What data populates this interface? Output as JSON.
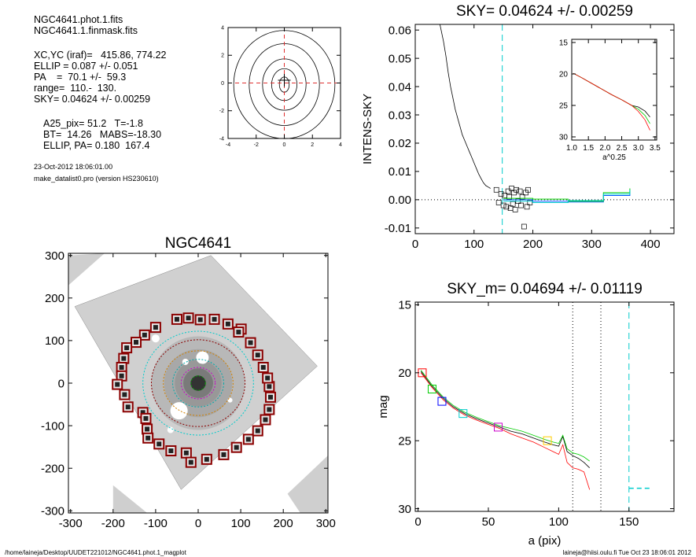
{
  "info": {
    "file1": "NGC4641.phot.1.fits",
    "file2": "NGC4641.1.finmask.fits",
    "xcyc": "XC,YC (iraf)=   415.86, 774.22",
    "ellip": "ELLIP = 0.087 +/- 0.051",
    "pa": "PA    =  70.1 +/-  59.3",
    "range": "range=  110.-  130.",
    "sky": "SKY= 0.04624 +/- 0.00259",
    "a25": "A25_pix= 51.2   T=-1.8",
    "bt": "BT=  14.26   MABS=-18.30",
    "ellip_pa": "ELLIP, PA= 0.180  167.4",
    "date": "23-Oct-2012 18:06:01.00",
    "program": "make_datalist0.pro (version HS230610)"
  },
  "footer": {
    "left": "/home/laineja/Desktop/UUDET221012/NGC4641.phot.1_magplot",
    "right": "laineja@hiisi.oulu.fi  Tue Oct 23 18:06:01 2012"
  },
  "chart_data": [
    {
      "type": "contour",
      "title": "",
      "xlim": [
        -4,
        4
      ],
      "ylim": [
        -4,
        4
      ],
      "xticks": [
        -4,
        -2,
        0,
        2,
        4
      ],
      "yticks": [
        -4,
        -2,
        0,
        2,
        4
      ],
      "levels": [
        {
          "rx": 0.35,
          "ry": 0.55
        },
        {
          "rx": 0.9,
          "ry": 1.15
        },
        {
          "rx": 1.55,
          "ry": 1.85
        },
        {
          "rx": 2.5,
          "ry": 2.95
        },
        {
          "rx": 3.6,
          "ry": 3.9
        }
      ],
      "crosshair": [
        0,
        0
      ]
    },
    {
      "type": "scatter",
      "title": "NGC4641",
      "xlim": [
        -305,
        305
      ],
      "ylim": [
        -305,
        305
      ],
      "xticks": [
        -300,
        -200,
        -100,
        0,
        100,
        200,
        300
      ],
      "yticks": [
        -300,
        -200,
        -100,
        0,
        100,
        200,
        300
      ],
      "ellipses": [
        {
          "a": 17,
          "b": 17,
          "color": "#00aa00"
        },
        {
          "a": 40,
          "b": 37,
          "color": "#cc00cc"
        },
        {
          "a": 60,
          "b": 56,
          "color": "#00aaaa"
        },
        {
          "a": 82,
          "b": 76,
          "color": "#d08000"
        },
        {
          "a": 110,
          "b": 102,
          "color": "#8b0000"
        },
        {
          "a": 130,
          "b": 122,
          "color": "#00cccc"
        }
      ],
      "masked_sources": [
        [
          -50,
          150
        ],
        [
          -23,
          153
        ],
        [
          5,
          149
        ],
        [
          38,
          150
        ],
        [
          70,
          139
        ],
        [
          101,
          127
        ],
        [
          -100,
          131
        ],
        [
          -126,
          113
        ],
        [
          -146,
          96
        ],
        [
          -168,
          83
        ],
        [
          -175,
          58
        ],
        [
          -180,
          37
        ],
        [
          -180,
          17
        ],
        [
          -190,
          -3
        ],
        [
          -173,
          -27
        ],
        [
          -165,
          -56
        ],
        [
          -130,
          -69
        ],
        [
          -123,
          -83
        ],
        [
          -120,
          -108
        ],
        [
          -118,
          -129
        ],
        [
          -92,
          -143
        ],
        [
          -64,
          -159
        ],
        [
          -28,
          -164
        ],
        [
          -17,
          -186
        ],
        [
          20,
          -179
        ],
        [
          60,
          -168
        ],
        [
          90,
          -151
        ],
        [
          118,
          -132
        ],
        [
          140,
          -112
        ],
        [
          158,
          -86
        ],
        [
          167,
          -62
        ],
        [
          170,
          -33
        ],
        [
          167,
          -8
        ],
        [
          163,
          12
        ],
        [
          153,
          37
        ],
        [
          140,
          66
        ],
        [
          123,
          95
        ],
        [
          95,
          120
        ]
      ]
    },
    {
      "type": "line",
      "title": "SKY= 0.04624 +/- 0.00259",
      "xlabel": "",
      "ylabel": "INTENS-SKY",
      "xlim": [
        0,
        440
      ],
      "ylim": [
        -0.012,
        0.062
      ],
      "xticks": [
        0,
        100,
        200,
        300,
        400
      ],
      "yticks": [
        -0.01,
        0.0,
        0.01,
        0.02,
        0.03,
        0.04,
        0.05,
        0.06
      ],
      "ytick_labels": [
        "-0.01",
        "0.00",
        "0.01",
        "0.02",
        "0.03",
        "0.04",
        "0.05",
        "0.06"
      ],
      "profile": {
        "x": [
          42,
          48,
          52,
          56,
          60,
          64,
          68,
          72,
          76,
          80,
          84,
          88,
          92,
          96,
          100,
          104,
          108,
          112,
          116,
          120,
          124,
          128
        ],
        "y": [
          0.062,
          0.056,
          0.051,
          0.045,
          0.04,
          0.036,
          0.032,
          0.029,
          0.026,
          0.023,
          0.021,
          0.019,
          0.017,
          0.015,
          0.013,
          0.011,
          0.009,
          0.0075,
          0.006,
          0.005,
          0.0045,
          0.004
        ]
      },
      "sky_boxes": {
        "x": [
          138,
          142,
          146,
          150,
          152,
          155,
          158,
          160,
          162,
          164,
          166,
          168,
          170,
          172,
          175,
          178,
          180,
          182,
          185,
          188,
          190,
          192,
          195
        ],
        "y": [
          0.0035,
          -0.001,
          0.002,
          -0.002,
          0.0015,
          -0.0025,
          0.003,
          0.001,
          -0.003,
          0.004,
          -0.0015,
          0.0025,
          -0.0035,
          0.0035,
          -0.0005,
          0.003,
          -0.002,
          0.001,
          -0.0095,
          0.0025,
          -0.0025,
          0.0035,
          -0.001
        ]
      },
      "step_lines": [
        {
          "color": "#0055ff",
          "x": [
            150,
            200,
            260,
            320,
            365
          ],
          "y": [
            0.0,
            -0.0005,
            -0.0008,
            0.0015,
            0.003
          ]
        },
        {
          "color": "#00cc00",
          "x": [
            150,
            200,
            260,
            320,
            365
          ],
          "y": [
            0.0005,
            0.0002,
            -0.0005,
            0.0025,
            0.004
          ]
        },
        {
          "color": "#00cccc",
          "x": [
            150,
            200,
            260,
            320,
            365
          ],
          "y": [
            -0.0005,
            -0.001,
            -0.0003,
            0.002,
            0.0035
          ]
        }
      ],
      "vline_x": 148,
      "inset": {
        "xlabel": "a^0.25",
        "xlim": [
          1.0,
          3.55
        ],
        "ylim": [
          30.5,
          14.5
        ],
        "xticks": [
          1.0,
          1.5,
          2.0,
          2.5,
          3.0,
          3.5
        ],
        "xtick_labels": [
          "1.0",
          "1.5",
          "2.0",
          "2.5",
          "3.0",
          "3.5"
        ],
        "yticks": [
          15,
          20,
          25,
          30
        ],
        "x": [
          1.05,
          1.3,
          1.6,
          1.9,
          2.2,
          2.5,
          2.8,
          3.0,
          3.2,
          3.35
        ],
        "y": [
          19.9,
          20.6,
          21.5,
          22.4,
          23.3,
          24.1,
          25.0,
          25.6,
          26.6,
          27.9
        ]
      }
    },
    {
      "type": "line",
      "title": "SKY_m=  0.04694 +/- 0.01119",
      "xlabel": "a (pix)",
      "ylabel": "mag",
      "xlim": [
        -2,
        182
      ],
      "ylim": [
        30.2,
        14.8
      ],
      "xticks": [
        0,
        50,
        100,
        150
      ],
      "yticks": [
        15,
        20,
        25,
        30
      ],
      "series": [
        {
          "color": "#000000",
          "x": [
            2,
            10,
            18,
            25,
            33,
            42,
            50,
            58,
            66,
            74,
            82,
            90,
            96,
            100,
            103,
            106,
            110,
            114,
            118,
            122
          ],
          "y": [
            19.9,
            21.0,
            21.9,
            22.5,
            23.0,
            23.4,
            23.7,
            24.0,
            24.3,
            24.5,
            24.8,
            25.1,
            25.3,
            25.4,
            24.7,
            25.8,
            26.1,
            26.3,
            26.6,
            27.0
          ]
        },
        {
          "color": "#00cc00",
          "x": [
            2,
            10,
            18,
            25,
            33,
            42,
            50,
            58,
            66,
            74,
            82,
            90,
            96,
            100,
            103,
            106,
            110,
            114,
            118,
            122
          ],
          "y": [
            19.8,
            20.9,
            21.8,
            22.4,
            22.9,
            23.3,
            23.6,
            23.9,
            24.1,
            24.3,
            24.6,
            24.9,
            25.1,
            25.2,
            24.6,
            25.6,
            25.9,
            26.0,
            26.2,
            26.5
          ]
        },
        {
          "color": "#ff0000",
          "x": [
            2,
            10,
            18,
            25,
            33,
            42,
            50,
            58,
            66,
            74,
            82,
            90,
            96,
            100,
            103,
            106,
            110,
            114,
            118,
            122
          ],
          "y": [
            20.0,
            21.1,
            22.0,
            22.6,
            23.1,
            23.5,
            23.8,
            24.1,
            24.5,
            24.8,
            25.1,
            25.5,
            25.8,
            26.0,
            25.3,
            26.6,
            27.0,
            27.1,
            27.3,
            28.6
          ]
        }
      ],
      "markers": [
        {
          "x": 3,
          "y": 20.0,
          "color": "#ff0000"
        },
        {
          "x": 10,
          "y": 21.2,
          "color": "#00cc00"
        },
        {
          "x": 17,
          "y": 22.1,
          "color": "#0000ff"
        },
        {
          "x": 32,
          "y": 23.0,
          "color": "#00cccc"
        },
        {
          "x": 57,
          "y": 24.0,
          "color": "#cc00cc"
        },
        {
          "x": 92,
          "y": 25.0,
          "color": "#ffcc00"
        }
      ],
      "vlines": [
        {
          "x": 110,
          "color": "#000000"
        },
        {
          "x": 130,
          "color": "#000000"
        },
        {
          "x": 150,
          "color": "#00cccc"
        }
      ],
      "sky_level": {
        "x": [
          150,
          165
        ],
        "y": 28.5,
        "color": "#00cccc"
      }
    }
  ]
}
